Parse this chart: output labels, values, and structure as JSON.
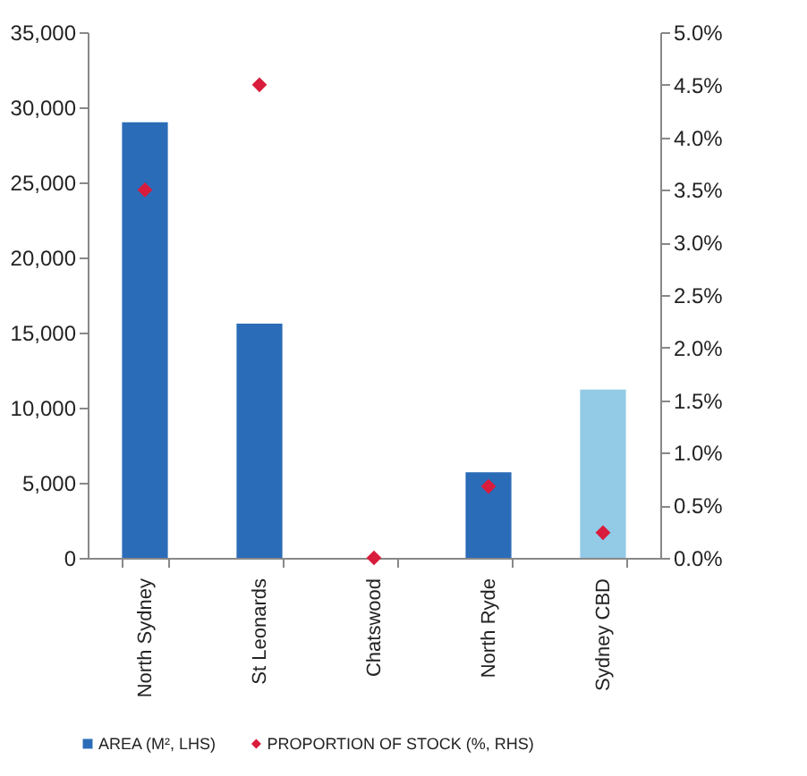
{
  "chart_data": {
    "type": "bar",
    "categories": [
      "North Sydney",
      "St Leonards",
      "Chatswood",
      "North Ryde",
      "Sydney CBD"
    ],
    "series": [
      {
        "name": "AREA (M², LHS)",
        "color": "#2b6cb8",
        "colors": [
          "#2b6cb8",
          "#2b6cb8",
          "#2b6cb8",
          "#2b6cb8",
          "#93cae6"
        ],
        "values": [
          29000,
          15600,
          0,
          5700,
          11200
        ]
      },
      {
        "name": "PROPORTION OF STOCK (%, RHS)",
        "type": "scatter",
        "axis": "y2",
        "color": "#d91c3c",
        "marker": "diamond",
        "values": [
          3.5,
          4.5,
          0,
          0.68,
          0.24
        ]
      }
    ],
    "ylim": [
      0,
      35000
    ],
    "yticks": [
      {
        "value": 0,
        "label": "0"
      },
      {
        "value": 5000,
        "label": "5,000"
      },
      {
        "value": 10000,
        "label": "10,000"
      },
      {
        "value": 15000,
        "label": "15,000"
      },
      {
        "value": 20000,
        "label": "20,000"
      },
      {
        "value": 25000,
        "label": "25,000"
      },
      {
        "value": 30000,
        "label": "30,000"
      },
      {
        "value": 35000,
        "label": "35,000"
      }
    ],
    "y2lim": [
      0,
      5
    ],
    "y2ticks": [
      {
        "value": 0,
        "label": "0.0%"
      },
      {
        "value": 0.5,
        "label": "0.5%"
      },
      {
        "value": 1,
        "label": "1.0%"
      },
      {
        "value": 1.5,
        "label": "1.5%"
      },
      {
        "value": 2,
        "label": "2.0%"
      },
      {
        "value": 2.5,
        "label": "2.5%"
      },
      {
        "value": 3,
        "label": "3.0%"
      },
      {
        "value": 3.5,
        "label": "3.5%"
      },
      {
        "value": 4,
        "label": "4.0%"
      },
      {
        "value": 4.5,
        "label": "4.5%"
      },
      {
        "value": 5,
        "label": "5.0%"
      }
    ],
    "grid": false,
    "legend": "bottom"
  }
}
